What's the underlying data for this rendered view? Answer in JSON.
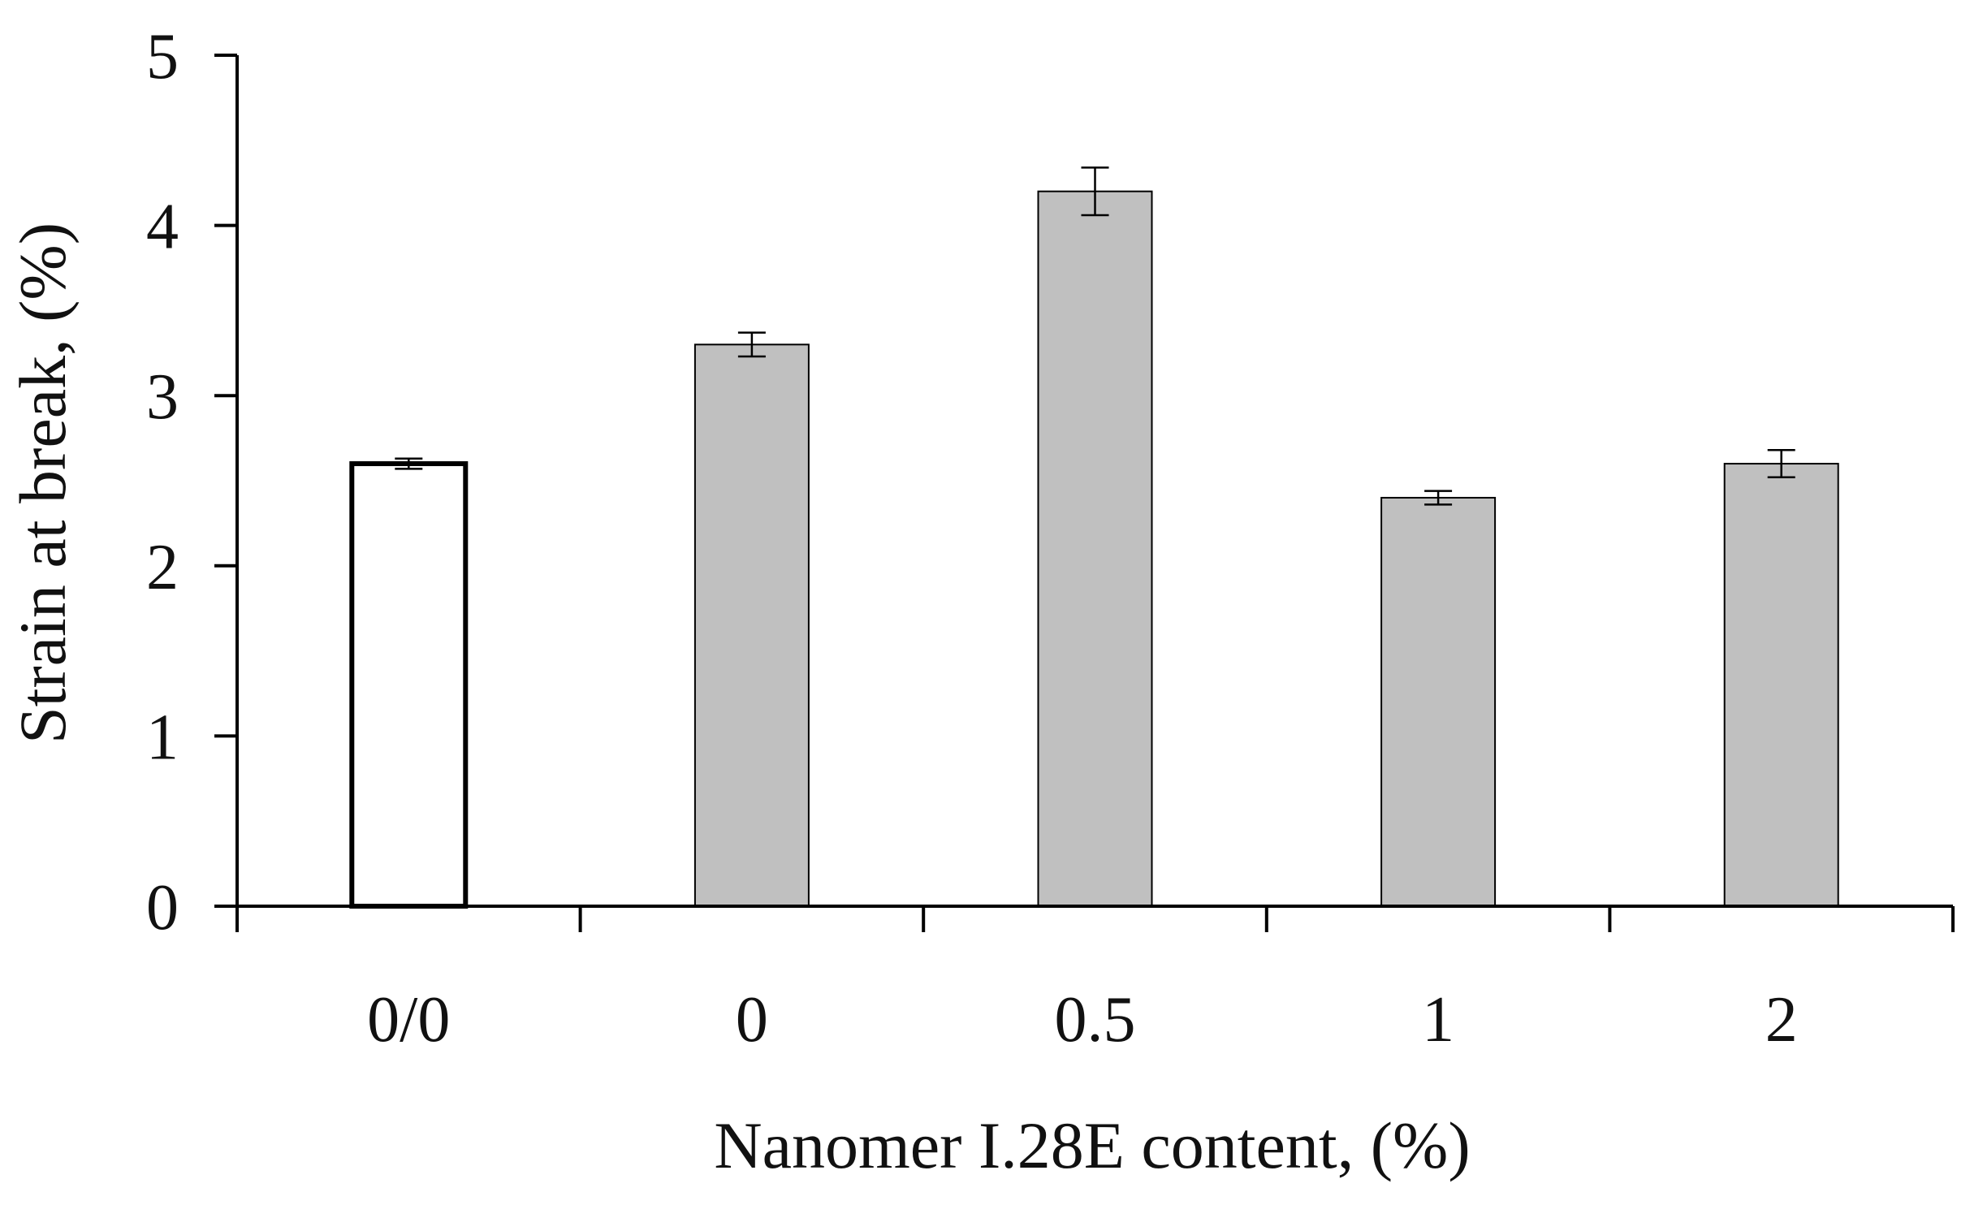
{
  "colors": {
    "axis": "#000000",
    "bar_fill_control": "#ffffff",
    "bar_fill": "#c0c0c0",
    "bar_stroke": "#000000"
  },
  "chart_data": {
    "type": "bar",
    "categories": [
      "0/0",
      "0",
      "0.5",
      "1",
      "2"
    ],
    "values": [
      2.6,
      3.3,
      4.2,
      2.4,
      2.6
    ],
    "errors": [
      0.03,
      0.07,
      0.14,
      0.04,
      0.08
    ],
    "xlabel": "Nanomer I.28E content, (%)",
    "ylabel": "Strain at break, (%)",
    "ylim": [
      0,
      5
    ],
    "yticks": [
      0,
      1,
      2,
      3,
      4,
      5
    ],
    "grid": false,
    "legend": "none"
  }
}
